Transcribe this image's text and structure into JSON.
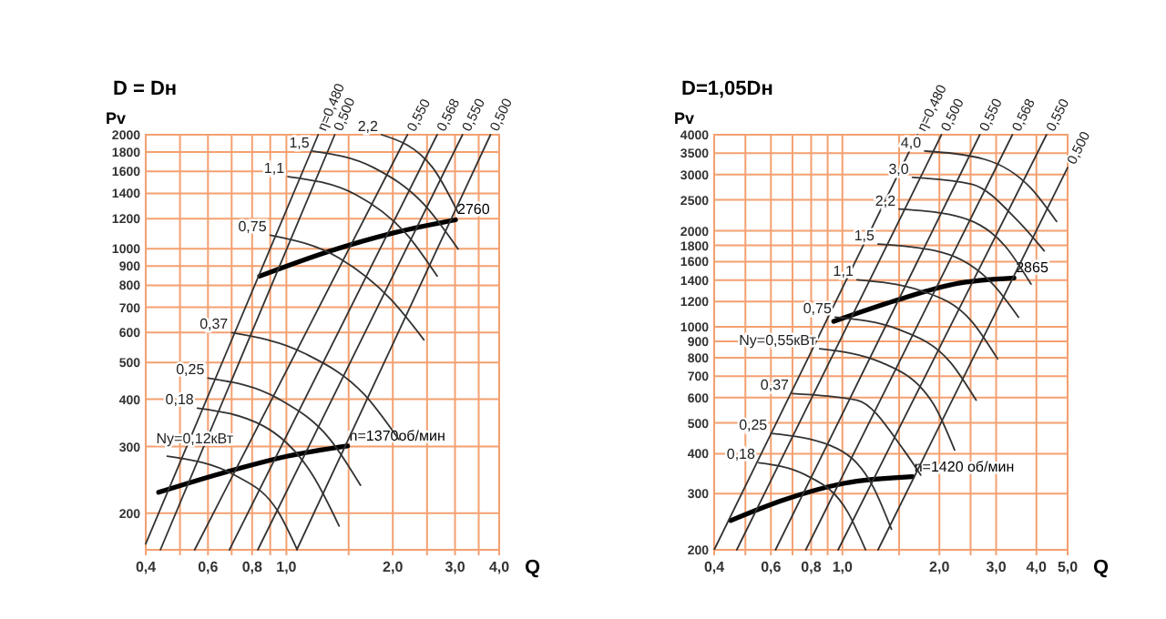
{
  "chart_data": [
    {
      "type": "line",
      "title": "D = Dн",
      "xlabel": "Q",
      "ylabel": "Pv",
      "log": "xy",
      "grid": true,
      "xlim": [
        0.4,
        4.0
      ],
      "ylim": [
        160,
        2000
      ],
      "xticks": [
        {
          "value": 0.4,
          "label": "0,4"
        },
        {
          "value": 0.5,
          "label": null
        },
        {
          "value": 0.6,
          "label": "0,6"
        },
        {
          "value": 0.7,
          "label": null
        },
        {
          "value": 0.8,
          "label": "0,8"
        },
        {
          "value": 0.9,
          "label": null
        },
        {
          "value": 1.0,
          "label": "1,0"
        },
        {
          "value": 1.5,
          "label": null
        },
        {
          "value": 2.0,
          "label": "2,0"
        },
        {
          "value": 2.5,
          "label": null
        },
        {
          "value": 3.0,
          "label": "3,0"
        },
        {
          "value": 3.5,
          "label": null
        },
        {
          "value": 4.0,
          "label": "4,0"
        }
      ],
      "yticks": [
        200,
        300,
        400,
        500,
        600,
        700,
        800,
        900,
        1000,
        1200,
        1400,
        1600,
        1800,
        2000
      ],
      "series": [
        {
          "name": "2760",
          "color": "#000000",
          "x": [
            0.84,
            1.33,
            2.02,
            3.01
          ],
          "values": [
            846,
            986,
            1102,
            1192
          ]
        },
        {
          "name": "n=1370об/мин",
          "color": "#000000",
          "x": [
            0.435,
            0.686,
            1.01,
            1.49
          ],
          "values": [
            227,
            258,
            283,
            301
          ]
        },
        {
          "name": "η=0,480",
          "color": "#333333",
          "x": [
            0.4,
            1.23
          ],
          "values": [
            166,
            2000
          ]
        },
        {
          "name": "0,500",
          "color": "#333333",
          "x": [
            0.44,
            1.37
          ],
          "values": [
            160,
            2000
          ]
        },
        {
          "name": "0,550",
          "color": "#333333",
          "x": [
            0.55,
            2.2
          ],
          "values": [
            160,
            2000
          ]
        },
        {
          "name": "0,568",
          "color": "#333333",
          "x": [
            0.69,
            2.67
          ],
          "values": [
            160,
            2000
          ]
        },
        {
          "name": "0,550",
          "color": "#333333",
          "x": [
            0.83,
            3.15
          ],
          "values": [
            160,
            2000
          ]
        },
        {
          "name": "0,500",
          "color": "#333333",
          "x": [
            1.07,
            3.78
          ],
          "values": [
            160,
            2000
          ]
        },
        {
          "name": "Ny=0,12кВт",
          "color": "#333333",
          "x": [
            0.46,
            0.72,
            0.95,
            1.07
          ],
          "values": [
            283,
            251,
            201,
            161
          ]
        },
        {
          "name": "0,18",
          "color": "#333333",
          "x": [
            0.56,
            0.86,
            1.19,
            1.41
          ],
          "values": [
            379,
            340,
            251,
            185
          ]
        },
        {
          "name": "0,25",
          "color": "#333333",
          "x": [
            0.6,
            0.95,
            1.33,
            1.62
          ],
          "values": [
            455,
            401,
            313,
            237
          ]
        },
        {
          "name": "0,37",
          "color": "#333333",
          "x": [
            0.7,
            1.13,
            1.66,
            2.08
          ],
          "values": [
            600,
            528,
            412,
            313
          ]
        },
        {
          "name": "0,75",
          "color": "#333333",
          "x": [
            0.9,
            1.41,
            1.97,
            2.45
          ],
          "values": [
            1085,
            944,
            736,
            574
          ]
        },
        {
          "name": "1,1",
          "color": "#333333",
          "x": [
            1.01,
            1.57,
            2.2,
            2.67
          ],
          "values": [
            1550,
            1390,
            1085,
            846
          ]
        },
        {
          "name": "1,5",
          "color": "#333333",
          "x": [
            1.19,
            1.76,
            2.45,
            3.06
          ],
          "values": [
            1810,
            1640,
            1310,
            998
          ]
        },
        {
          "name": "2,2",
          "color": "#333333",
          "x": [
            1.86,
            2.59,
            3.06
          ],
          "values": [
            2000,
            1640,
            1245
          ]
        }
      ]
    },
    {
      "type": "line",
      "title": "D=1,05Dн",
      "xlabel": "Q",
      "ylabel": "Pv",
      "log": "xy",
      "grid": true,
      "xlim": [
        0.4,
        5.0
      ],
      "ylim": [
        200,
        4000
      ],
      "xticks": [
        {
          "value": 0.4,
          "label": "0,4"
        },
        {
          "value": 0.5,
          "label": null
        },
        {
          "value": 0.6,
          "label": "0,6"
        },
        {
          "value": 0.7,
          "label": null
        },
        {
          "value": 0.8,
          "label": "0,8"
        },
        {
          "value": 0.9,
          "label": null
        },
        {
          "value": 1.0,
          "label": "1,0"
        },
        {
          "value": 1.5,
          "label": null
        },
        {
          "value": 2.0,
          "label": "2,0"
        },
        {
          "value": 2.5,
          "label": null
        },
        {
          "value": 3.0,
          "label": "3,0"
        },
        {
          "value": 4.0,
          "label": "4,0"
        },
        {
          "value": 5.0,
          "label": "5,0"
        }
      ],
      "yticks": [
        200,
        300,
        400,
        500,
        600,
        700,
        800,
        900,
        1000,
        1200,
        1400,
        1600,
        1800,
        2000,
        2500,
        3000,
        3500,
        4000
      ],
      "series": [
        {
          "name": "2865",
          "color": "#000000",
          "x": [
            0.94,
            1.46,
            2.23,
            3.41
          ],
          "values": [
            1040,
            1208,
            1362,
            1422
          ]
        },
        {
          "name": "n=1420 об/мин",
          "color": "#000000",
          "x": [
            0.45,
            0.66,
            1.01,
            1.65
          ],
          "values": [
            247,
            287,
            323,
            339
          ]
        },
        {
          "name": "η=0,480",
          "color": "#333333",
          "x": [
            0.4,
            1.71
          ],
          "values": [
            200,
            4000
          ]
        },
        {
          "name": "0,500",
          "color": "#333333",
          "x": [
            0.47,
            2.03
          ],
          "values": [
            200,
            4000
          ]
        },
        {
          "name": "0,550",
          "color": "#333333",
          "x": [
            0.62,
            2.67
          ],
          "values": [
            200,
            4000
          ]
        },
        {
          "name": "0,568",
          "color": "#333333",
          "x": [
            0.77,
            3.37
          ],
          "values": [
            200,
            4000
          ]
        },
        {
          "name": "0,550",
          "color": "#333333",
          "x": [
            0.97,
            4.3
          ],
          "values": [
            200,
            4000
          ]
        },
        {
          "name": "0,500",
          "color": "#333333",
          "x": [
            1.29,
            5.0
          ],
          "values": [
            200,
            3155
          ]
        },
        {
          "name": "0,18",
          "color": "#333333",
          "x": [
            0.55,
            0.77,
            1.04,
            1.18
          ],
          "values": [
            375,
            343,
            262,
            200
          ]
        },
        {
          "name": "0,25",
          "color": "#333333",
          "x": [
            0.6,
            0.92,
            1.25,
            1.42
          ],
          "values": [
            463,
            424,
            313,
            232
          ]
        },
        {
          "name": "0,37",
          "color": "#333333",
          "x": [
            0.7,
            1.11,
            1.55,
            1.75
          ],
          "values": [
            618,
            589,
            411,
            343
          ]
        },
        {
          "name": "Ny=0,55кВт",
          "color": "#333333",
          "x": [
            0.85,
            1.33,
            1.92,
            2.23
          ],
          "values": [
            853,
            771,
            571,
            411
          ]
        },
        {
          "name": "0,75",
          "color": "#333333",
          "x": [
            0.95,
            1.5,
            2.17,
            2.6
          ],
          "values": [
            1072,
            980,
            771,
            589
          ]
        },
        {
          "name": "1,1",
          "color": "#333333",
          "x": [
            1.11,
            1.75,
            2.52,
            3.03
          ],
          "values": [
            1403,
            1298,
            1040,
            794
          ]
        },
        {
          "name": "1,5",
          "color": "#333333",
          "x": [
            1.29,
            2.04,
            2.93,
            3.52
          ],
          "values": [
            1816,
            1710,
            1361,
            1072
          ]
        },
        {
          "name": "2,2",
          "color": "#333333",
          "x": [
            1.5,
            2.23,
            3.21,
            3.85
          ],
          "values": [
            2339,
            2230,
            1783,
            1361
          ]
        },
        {
          "name": "3,0",
          "color": "#333333",
          "x": [
            1.65,
            2.52,
            3.52,
            4.23
          ],
          "values": [
            2940,
            2800,
            2138,
            1730
          ]
        },
        {
          "name": "4,0",
          "color": "#333333",
          "x": [
            1.8,
            2.76,
            3.85,
            4.62
          ],
          "values": [
            3556,
            3350,
            2716,
            2138
          ]
        }
      ]
    }
  ]
}
